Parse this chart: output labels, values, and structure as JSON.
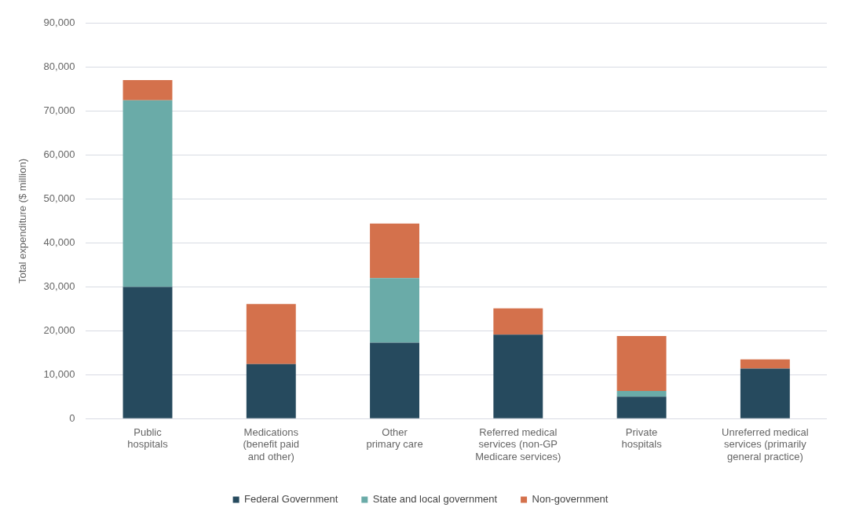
{
  "chart_data": {
    "type": "bar",
    "stacked": true,
    "ylabel": "Total expenditure ($ million)",
    "categories": [
      "Public\nhospitals",
      "Medications\n(benefit paid\nand other)",
      "Other\nprimary care",
      "Referred medical\nservices (non-GP\nMedicare services)",
      "Private\nhospitals",
      "Unreferred medical\nservices (primarily\ngeneral practice)"
    ],
    "series": [
      {
        "name": "Federal Government",
        "color": "#264a5e",
        "values": [
          30000,
          12400,
          17300,
          19100,
          5000,
          11400
        ]
      },
      {
        "name": "State and local government",
        "color": "#6aaba8",
        "values": [
          42500,
          0,
          14700,
          0,
          1300,
          0
        ]
      },
      {
        "name": "Non-government",
        "color": "#d4714c",
        "values": [
          4600,
          13700,
          12400,
          6000,
          12500,
          2100
        ]
      }
    ],
    "ylim": [
      0,
      90000
    ],
    "yticks": [
      0,
      {
        "value": 10000,
        "label": "10,000"
      },
      {
        "value": 20000,
        "label": "20,000"
      },
      {
        "value": 30000,
        "label": "30,000"
      },
      {
        "value": 40000,
        "label": "40,000"
      },
      {
        "value": 50000,
        "label": "50,000"
      },
      {
        "value": 60000,
        "label": "60,000"
      },
      {
        "value": 70000,
        "label": "70,000"
      },
      {
        "value": 80000,
        "label": "80,000"
      },
      {
        "value": 90000,
        "label": "90,000"
      }
    ],
    "grid": "y",
    "legend": "bottom",
    "marker": "square"
  }
}
